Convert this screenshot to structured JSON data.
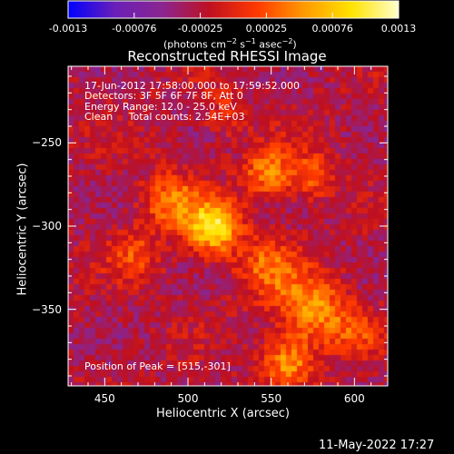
{
  "chart_data": {
    "type": "heatmap",
    "title": "Reconstructed RHESSI Image",
    "xlabel": "Heliocentric X (arcsec)",
    "ylabel": "Heliocentric Y (arcsec)",
    "x_ticks": [
      450,
      500,
      550,
      600
    ],
    "y_ticks": [
      -250,
      -300,
      -350
    ],
    "xlim": [
      428,
      620
    ],
    "ylim": [
      -396,
      -204
    ],
    "colorbar": {
      "ticks": [
        "-0.0013",
        "-0.00076",
        "-0.00025",
        "0.00025",
        "0.00076",
        "0.0013"
      ],
      "range": [
        -0.0013,
        0.0013
      ],
      "unit_label": {
        "prefix": "(photons cm",
        "exp1": "−2",
        "mid1": " s",
        "exp2": "−1",
        "mid2": " asec",
        "exp3": "−2",
        "suffix": ")"
      },
      "stops": [
        "#0000ff",
        "#6a1fb8",
        "#8b2590",
        "#c01020",
        "#ff3a00",
        "#ff9a00",
        "#ffe300",
        "#ffffcc"
      ]
    },
    "annotations": {
      "time": "17-Jun-2012 17:58:00.000 to 17:59:52.000",
      "detectors": "Detectors: 3F 5F 6F 7F 8F, Att 0",
      "energy": "Energy Range: 12.0 - 25.0 keV",
      "clean": "Clean     Total counts: 2.54E+03",
      "peak": "Position of Peak = [515,-301]"
    },
    "peak": {
      "x": 515,
      "y": -301
    },
    "sources": [
      {
        "x": 515,
        "y": -301,
        "amp": 0.00125,
        "sigma": 11
      },
      {
        "x": 548,
        "y": -268,
        "amp": 0.0008,
        "sigma": 10
      },
      {
        "x": 575,
        "y": -270,
        "amp": 0.00055,
        "sigma": 10
      },
      {
        "x": 490,
        "y": -285,
        "amp": 0.0007,
        "sigma": 12
      },
      {
        "x": 468,
        "y": -318,
        "amp": 0.00045,
        "sigma": 11
      },
      {
        "x": 548,
        "y": -325,
        "amp": 0.0006,
        "sigma": 13
      },
      {
        "x": 575,
        "y": -350,
        "amp": 0.00085,
        "sigma": 14
      },
      {
        "x": 560,
        "y": -382,
        "amp": 0.0008,
        "sigma": 11
      },
      {
        "x": 600,
        "y": -365,
        "amp": 0.00045,
        "sigma": 10
      },
      {
        "x": 520,
        "y": -232,
        "amp": 0.00035,
        "sigma": 10
      }
    ]
  },
  "timestamp": "11-May-2022 17:27"
}
